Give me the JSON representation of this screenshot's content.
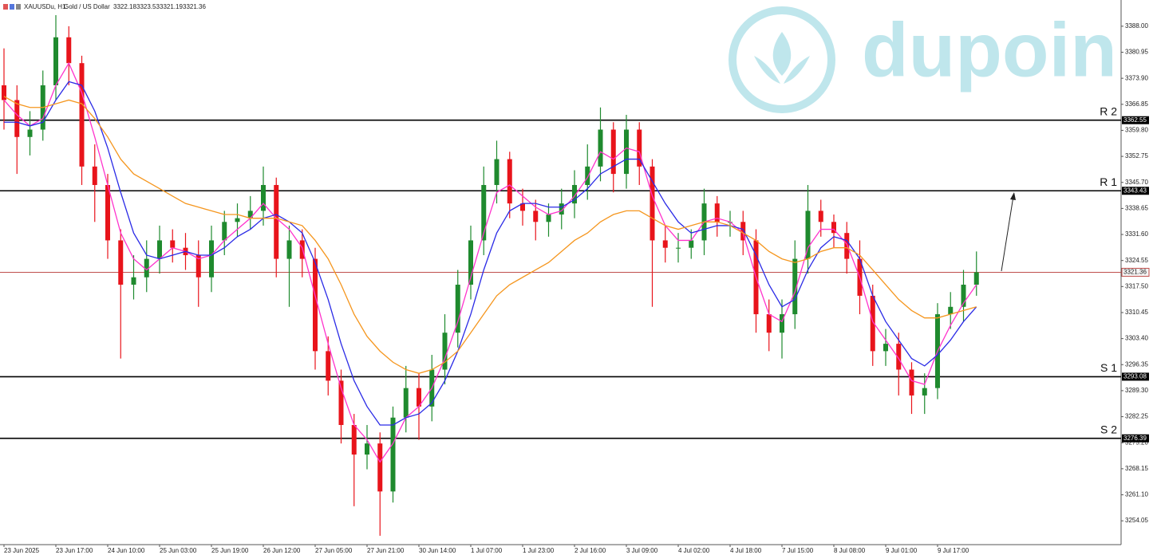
{
  "header": {
    "symbol": "XAUUSDu, H1:",
    "description": "Gold / US Dollar",
    "open": 3322.18,
    "high": 3323.53,
    "low": 3321.19,
    "close": 3321.36
  },
  "watermark": "dupoin",
  "chart_data": {
    "type": "candlestick",
    "categories": [
      "23 Jun 2025",
      null,
      null,
      null,
      "23 Jun 17:00",
      null,
      null,
      null,
      "24 Jun 10:00",
      null,
      null,
      null,
      "25 Jun 03:00",
      null,
      null,
      null,
      "25 Jun 19:00",
      null,
      null,
      null,
      "26 Jun 12:00",
      null,
      null,
      null,
      "27 Jun 05:00",
      null,
      null,
      null,
      "27 Jun 21:00",
      null,
      null,
      null,
      "30 Jun 14:00",
      null,
      null,
      null,
      "1 Jul 07:00",
      null,
      null,
      null,
      "1 Jul 23:00",
      null,
      null,
      null,
      "2 Jul 16:00",
      null,
      null,
      null,
      "3 Jul 09:00",
      null,
      null,
      null,
      "4 Jul 02:00",
      null,
      null,
      null,
      "4 Jul 18:00",
      null,
      null,
      null,
      "7 Jul 15:00",
      null,
      null,
      null,
      "8 Jul 08:00",
      null,
      null,
      null,
      "9 Jul 01:00",
      null,
      null,
      null,
      "9 Jul 17:00",
      null,
      null,
      null
    ],
    "open": [
      3372,
      3368,
      3358,
      3360,
      3372,
      3385,
      3378,
      3350,
      3345,
      3330,
      3318,
      3320,
      3325,
      3330,
      3328,
      3326,
      3320,
      3330,
      3335,
      3336,
      3338,
      3345,
      3325,
      3330,
      3325,
      3300,
      3292,
      3280,
      3272,
      3275,
      3262,
      3282,
      3290,
      3285,
      3295,
      3305,
      3318,
      3330,
      3345,
      3352,
      3340,
      3338,
      3335,
      3337,
      3340,
      3345,
      3350,
      3360,
      3348,
      3360,
      3350,
      3330,
      3328,
      3328,
      3330,
      3340,
      3335,
      3335,
      3330,
      3310,
      3305,
      3310,
      3325,
      3338,
      3335,
      3332,
      3325,
      3315,
      3300,
      3302,
      3295,
      3288,
      3290,
      3310,
      3312,
      3318
    ],
    "high": [
      3382,
      3372,
      3365,
      3376,
      3391,
      3388,
      3380,
      3356,
      3348,
      3333,
      3326,
      3330,
      3334,
      3333,
      3332,
      3330,
      3334,
      3338,
      3340,
      3342,
      3350,
      3347,
      3334,
      3333,
      3328,
      3304,
      3295,
      3283,
      3280,
      3278,
      3285,
      3296,
      3294,
      3299,
      3310,
      3322,
      3334,
      3350,
      3357,
      3354,
      3344,
      3341,
      3340,
      3344,
      3349,
      3356,
      3366,
      3362,
      3364,
      3362,
      3352,
      3334,
      3332,
      3333,
      3344,
      3342,
      3338,
      3338,
      3333,
      3314,
      3314,
      3330,
      3345,
      3341,
      3337,
      3335,
      3330,
      3318,
      3306,
      3305,
      3297,
      3294,
      3313,
      3316,
      3322,
      3327
    ],
    "low": [
      3360,
      3348,
      3353,
      3357,
      3368,
      3372,
      3345,
      3335,
      3325,
      3298,
      3314,
      3316,
      3321,
      3324,
      3322,
      3312,
      3316,
      3326,
      3331,
      3333,
      3334,
      3320,
      3312,
      3320,
      3295,
      3288,
      3275,
      3258,
      3268,
      3250,
      3259,
      3278,
      3276,
      3281,
      3291,
      3301,
      3314,
      3326,
      3340,
      3336,
      3334,
      3330,
      3331,
      3333,
      3336,
      3341,
      3346,
      3343,
      3344,
      3345,
      3312,
      3324,
      3324,
      3325,
      3326,
      3331,
      3331,
      3326,
      3305,
      3300,
      3298,
      3306,
      3321,
      3331,
      3328,
      3321,
      3310,
      3296,
      3296,
      3288,
      3283,
      3283,
      3287,
      3306,
      3308,
      3315
    ],
    "close": [
      3368,
      3358,
      3360,
      3372,
      3385,
      3378,
      3350,
      3345,
      3330,
      3318,
      3320,
      3325,
      3330,
      3328,
      3326,
      3320,
      3330,
      3335,
      3336,
      3338,
      3345,
      3325,
      3330,
      3325,
      3300,
      3292,
      3280,
      3272,
      3275,
      3262,
      3282,
      3290,
      3285,
      3295,
      3305,
      3318,
      3330,
      3345,
      3352,
      3340,
      3338,
      3335,
      3337,
      3340,
      3345,
      3350,
      3360,
      3348,
      3360,
      3350,
      3330,
      3328,
      3328,
      3330,
      3340,
      3335,
      3335,
      3330,
      3310,
      3305,
      3310,
      3325,
      3338,
      3335,
      3332,
      3325,
      3315,
      3300,
      3302,
      3295,
      3288,
      3290,
      3310,
      3312,
      3318,
      3321.36
    ],
    "up_color": "#1f8a2e",
    "down_color": "#e8141b",
    "series": [
      {
        "color": "#ff33cc",
        "values": [
          3368,
          3364,
          3361,
          3363,
          3372,
          3378,
          3370,
          3358,
          3345,
          3332,
          3325,
          3322,
          3325,
          3328,
          3327,
          3325,
          3326,
          3330,
          3333,
          3336,
          3340,
          3336,
          3333,
          3328,
          3315,
          3302,
          3290,
          3280,
          3276,
          3270,
          3275,
          3282,
          3285,
          3290,
          3298,
          3308,
          3320,
          3332,
          3343,
          3345,
          3342,
          3339,
          3337,
          3338,
          3342,
          3347,
          3354,
          3352,
          3355,
          3354,
          3342,
          3334,
          3330,
          3330,
          3335,
          3336,
          3335,
          3332,
          3320,
          3310,
          3308,
          3316,
          3328,
          3333,
          3333,
          3329,
          3320,
          3308,
          3303,
          3298,
          3292,
          3291,
          3300,
          3307,
          3313,
          3318
        ]
      },
      {
        "color": "#2a2ae6",
        "values": [
          3362,
          3362,
          3361,
          3362,
          3368,
          3373,
          3372,
          3365,
          3355,
          3343,
          3332,
          3326,
          3325,
          3326,
          3327,
          3326,
          3326,
          3328,
          3331,
          3333,
          3336,
          3337,
          3335,
          3332,
          3324,
          3314,
          3302,
          3292,
          3285,
          3280,
          3280,
          3282,
          3283,
          3286,
          3292,
          3300,
          3310,
          3322,
          3332,
          3338,
          3340,
          3340,
          3339,
          3339,
          3341,
          3344,
          3348,
          3350,
          3352,
          3352,
          3346,
          3340,
          3335,
          3332,
          3333,
          3334,
          3334,
          3333,
          3326,
          3318,
          3312,
          3314,
          3322,
          3328,
          3331,
          3330,
          3325,
          3315,
          3308,
          3303,
          3298,
          3296,
          3299,
          3303,
          3308,
          3312
        ]
      },
      {
        "color": "#f5961e",
        "values": [
          3369,
          3367,
          3366,
          3366,
          3367,
          3368,
          3367,
          3363,
          3358,
          3352,
          3348,
          3346,
          3344,
          3342,
          3340,
          3339,
          3338,
          3337,
          3337,
          3336,
          3336,
          3336,
          3335,
          3334,
          3330,
          3325,
          3318,
          3310,
          3304,
          3300,
          3297,
          3295,
          3294,
          3295,
          3297,
          3300,
          3305,
          3310,
          3315,
          3318,
          3320,
          3322,
          3324,
          3327,
          3330,
          3332,
          3335,
          3337,
          3338,
          3338,
          3336,
          3334,
          3333,
          3334,
          3335,
          3335,
          3334,
          3332,
          3330,
          3327,
          3325,
          3324,
          3325,
          3327,
          3328,
          3328,
          3326,
          3322,
          3318,
          3314,
          3311,
          3309,
          3309,
          3310,
          3311,
          3312
        ]
      }
    ],
    "levels": [
      {
        "label": "R 2",
        "value": 3362.55
      },
      {
        "label": "R 1",
        "value": 3343.43
      },
      {
        "label": "S 1",
        "value": 3293.08
      },
      {
        "label": "S 2",
        "value": 3276.39
      }
    ],
    "price_line_color": "#c0504d",
    "ylim": [
      3247.6,
      3395.1
    ],
    "yticks": [
      {
        "value": 3388,
        "label": "3388.00"
      },
      {
        "value": 3380.95,
        "label": "3380.95"
      },
      {
        "value": 3373.9,
        "label": "3373.90"
      },
      {
        "value": 3366.85,
        "label": "3366.85"
      },
      {
        "value": 3359.8,
        "label": "3359.80"
      },
      {
        "value": 3352.75,
        "label": "3352.75"
      },
      {
        "value": 3345.7,
        "label": "3345.70"
      },
      {
        "value": 3338.65,
        "label": "3338.65"
      },
      {
        "value": 3331.6,
        "label": "3331.60"
      },
      {
        "value": 3324.55,
        "label": "3324.55"
      },
      {
        "value": 3317.5,
        "label": "3317.50"
      },
      {
        "value": 3310.45,
        "label": "3310.45"
      },
      {
        "value": 3303.4,
        "label": "3303.40"
      },
      {
        "value": 3296.35,
        "label": "3296.35"
      },
      {
        "value": 3289.3,
        "label": "3289.30"
      },
      {
        "value": 3282.25,
        "label": "3282.25"
      },
      {
        "value": 3275.2,
        "label": "3275.20"
      },
      {
        "value": 3268.15,
        "label": "3268.15"
      },
      {
        "value": 3261.1,
        "label": "3261.10"
      },
      {
        "value": 3254.05,
        "label": "3254.05"
      }
    ]
  }
}
